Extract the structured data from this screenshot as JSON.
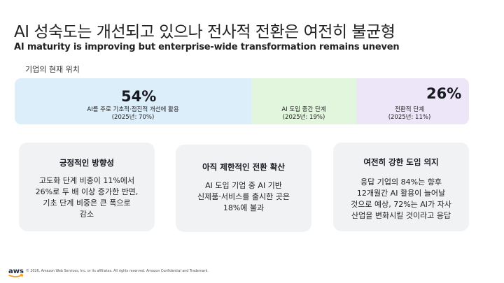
{
  "slide": {
    "title": "AI 성숙도는 개선되고 있으나 전사적 전환은 여전히 불균형",
    "subtitle": "AI maturity is improving but enterprise-wide transformation remains uneven",
    "section_label": "기업의 현재 위치"
  },
  "bar": {
    "segments": [
      {
        "pct": "54%",
        "desc": "AI를 주로 기초적·점진적 개선에 활용",
        "note": "(2025년: 70%)",
        "color": "#ddeefb"
      },
      {
        "pct": "",
        "desc": "AI 도입 중간 단계",
        "note": "(2025년: 19%)",
        "color": "#e2f6de"
      },
      {
        "pct": "26%",
        "desc": "전환적 단계",
        "note": "(2025년: 11%)",
        "color": "#ece6f8"
      }
    ]
  },
  "cards": [
    {
      "title": "긍정적인 방향성",
      "body": "고도화 단계 비중이 11%에서\n26%로 두 배 이상 증가한 반면,\n기초 단계 비중은 큰 폭으로\n감소"
    },
    {
      "title": "아직 제한적인 전환 확산",
      "body": "AI 도입 기업 중 AI 기반\n신제품·서비스를 출시한 곳은\n18%에 불과"
    },
    {
      "title": "여전히 강한 도입 의지",
      "body": "응답 기업의 84%는 향후\n12개월간 AI 활용이 늘어날\n것으로 예상, 72%는 AI가 자사\n산업을 변화시킬 것이라고 응답"
    }
  ],
  "footer": {
    "logo_text": "aws",
    "copyright": "© 2026, Amazon Web Services, Inc. or its affiliates. All rights reserved. Amazon Confidential and Trademark."
  }
}
